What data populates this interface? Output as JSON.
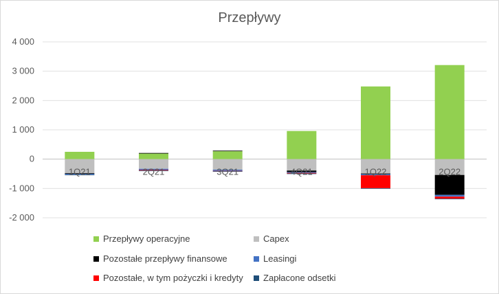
{
  "chart_data": {
    "type": "bar",
    "stacked": true,
    "title": "Przepływy",
    "xlabel": "",
    "ylabel": "",
    "ylim": [
      -2000,
      4000
    ],
    "yticks": [
      4000,
      3000,
      2000,
      1000,
      0,
      -1000,
      -2000
    ],
    "ytick_labels": [
      "4 000",
      "3 000",
      "2 000",
      "1 000",
      "0",
      "-1 000",
      "-2 000"
    ],
    "grid": true,
    "legend_position": "bottom",
    "categories": [
      "1Q21",
      "2Q21",
      "3Q21",
      "4Q21",
      "1Q22",
      "2Q22"
    ],
    "series": [
      {
        "name": "Przepływy operacyjne",
        "color": "#92d050",
        "values": [
          250,
          190,
          270,
          960,
          2480,
          3210
        ]
      },
      {
        "name": "Capex",
        "color": "#bfbfbf",
        "values": [
          -480,
          -330,
          -360,
          -390,
          -490,
          -540
        ]
      },
      {
        "name": "Pozostałe przepływy finansowe",
        "color": "#000000",
        "values": [
          -20,
          20,
          20,
          -50,
          -20,
          -680
        ]
      },
      {
        "name": "Leasingi",
        "color": "#4472c4",
        "values": [
          -30,
          -40,
          -40,
          -30,
          -40,
          -60
        ]
      },
      {
        "name": "Pozostałe, w tym pożyczki i kredyty",
        "color": "#ff0000",
        "values": [
          0,
          -20,
          -10,
          -20,
          -440,
          -70
        ]
      },
      {
        "name": "Zapłacone odsetki",
        "color": "#1f4e79",
        "values": [
          -10,
          -10,
          -10,
          -10,
          -20,
          -10
        ]
      }
    ]
  }
}
